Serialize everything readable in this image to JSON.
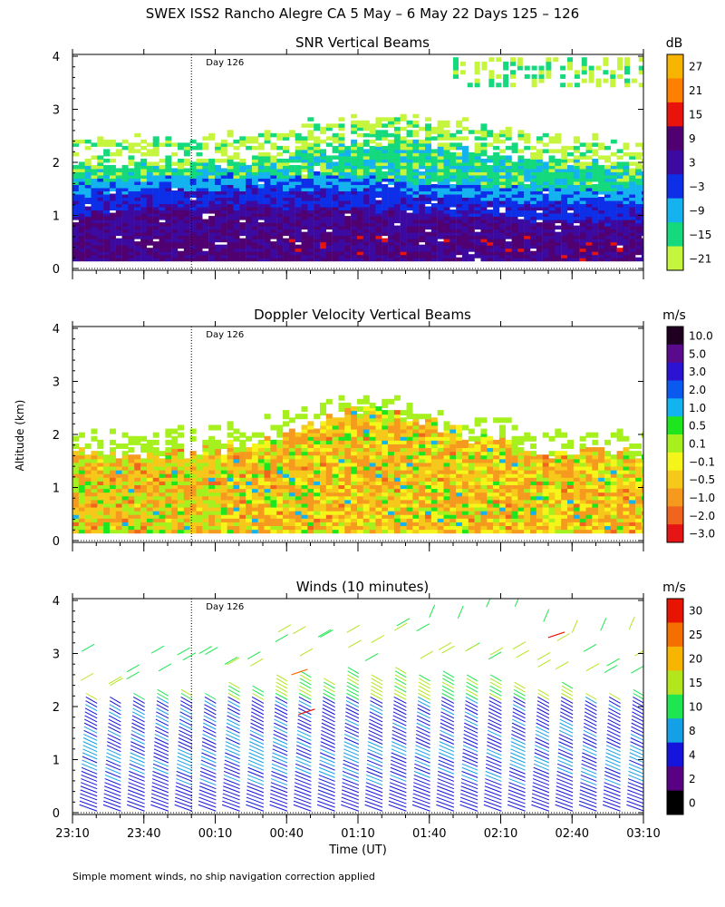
{
  "figure_title": "SWEX ISS2 Rancho Alegre CA   5 May –  6 May 22 Days 125 – 126",
  "footnote": "Simple moment winds, no ship navigation correction applied",
  "day_marker": "Day 126",
  "shared_axes": {
    "ylabel": "Altitude (km)",
    "xlabel": "Time (UT)",
    "y_ticks": [
      "0",
      "1",
      "2",
      "3",
      "4"
    ],
    "x_ticks": [
      "23:10",
      "23:40",
      "00:10",
      "00:40",
      "01:10",
      "01:40",
      "02:10",
      "02:40",
      "03:10"
    ]
  },
  "chart_data": [
    {
      "type": "heatmap",
      "title": "SNR Vertical Beams",
      "units": "dB",
      "xlabel": "Time (UT)",
      "ylabel": "Altitude (km)",
      "xlim": [
        "23:10",
        "03:10"
      ],
      "ylim": [
        0,
        4
      ],
      "day_boundary": "00:00",
      "colorbar_labels": [
        "27",
        "21",
        "15",
        "9",
        "3",
        "−3",
        "−9",
        "−15",
        "−21"
      ],
      "colorbar_colors": [
        "#f7b400",
        "#ff7f00",
        "#e8140c",
        "#500070",
        "#3c0aa0",
        "#0d2fe8",
        "#15b2f0",
        "#14d97d",
        "#c6f53d"
      ],
      "layers": [
        {
          "altitude_range_km": [
            0.15,
            0.6
          ],
          "snr_db": 9
        },
        {
          "altitude_range_km": [
            0.6,
            1.2
          ],
          "snr_db": 3
        },
        {
          "altitude_range_km": [
            1.2,
            1.5
          ],
          "snr_db": -3
        },
        {
          "altitude_range_km": [
            1.5,
            1.9
          ],
          "snr_db": -9
        },
        {
          "altitude_range_km": [
            1.9,
            2.6
          ],
          "snr_db": -15
        }
      ]
    },
    {
      "type": "heatmap",
      "title": "Doppler Velocity Vertical Beams",
      "units": "m/s",
      "xlabel": "Time (UT)",
      "ylabel": "Altitude (km)",
      "xlim": [
        "23:10",
        "03:10"
      ],
      "ylim": [
        0,
        4
      ],
      "day_boundary": "00:00",
      "colorbar_labels": [
        "10.0",
        "5.0",
        "3.0",
        "2.0",
        "1.0",
        "0.5",
        "0.1",
        "−0.1",
        "−0.5",
        "−1.0",
        "−2.0",
        "−3.0"
      ],
      "colorbar_colors": [
        "#200020",
        "#5a0a8c",
        "#2a14d2",
        "#0a5af0",
        "#12b4f0",
        "#1ee61e",
        "#a6f01e",
        "#f5f51a",
        "#f5c81a",
        "#f59a1e",
        "#f0641e",
        "#e61414"
      ],
      "dominant_velocity_range_ms": [
        -1.0,
        -0.1
      ],
      "data_top_km": 2.6
    },
    {
      "type": "scatter",
      "title": "Winds (10 minutes)",
      "units": "m/s",
      "marker": "wind barb",
      "xlabel": "Time (UT)",
      "ylabel": "Altitude (km)",
      "xlim": [
        "23:10",
        "03:10"
      ],
      "ylim": [
        0,
        4
      ],
      "day_boundary": "00:00",
      "profile_interval_minutes": 10,
      "colorbar_labels": [
        "30",
        "25",
        "20",
        "15",
        "10",
        "8",
        "4",
        "2",
        "0"
      ],
      "colorbar_colors": [
        "#e61400",
        "#f56e00",
        "#f7b400",
        "#b4e61e",
        "#1ee650",
        "#14a0e6",
        "#1414dc",
        "#5a0082",
        "#000000"
      ],
      "typical_speed_range_ms": [
        4,
        10
      ]
    }
  ]
}
